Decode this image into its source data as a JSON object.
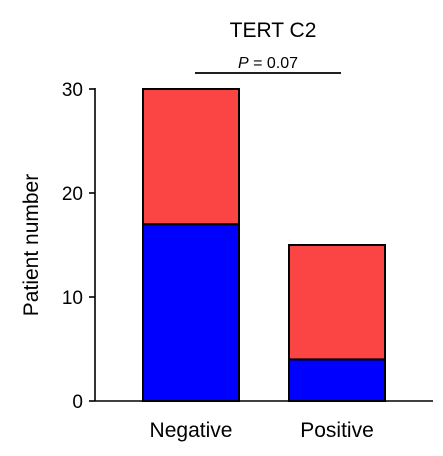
{
  "chart_data": {
    "type": "bar",
    "stacked": true,
    "title": "TERT C2",
    "annotation": {
      "p_label": "P",
      "p_rest": " = 0.07"
    },
    "ylabel": "Patient number",
    "categories": [
      "Negative",
      "Positive"
    ],
    "yticks": [
      0,
      10,
      20,
      30
    ],
    "ylim": [
      0,
      30
    ],
    "series": [
      {
        "values": [
          17,
          4
        ],
        "color": "#0000ff"
      },
      {
        "values": [
          13,
          11
        ],
        "color": "#fb4444"
      }
    ]
  }
}
